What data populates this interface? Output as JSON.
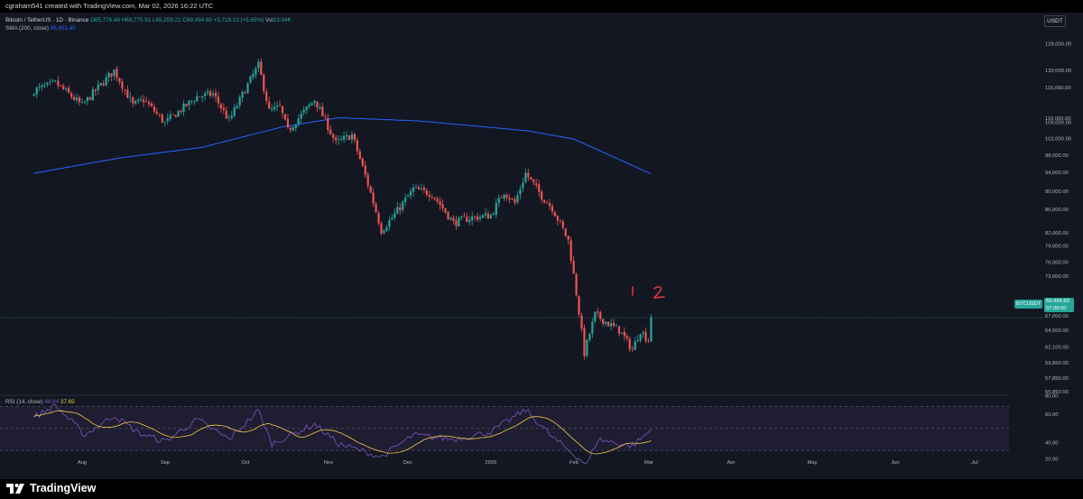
{
  "header": {
    "credit": "cgraham541 created with TradingView.com, Mar 02, 2026 16:22 UTC"
  },
  "legend": {
    "symbol": "Bitcoin / TetherUS · 1D · Binance",
    "open": "O65,776.48",
    "high": "H69,775.91",
    "low": "L65,259.21",
    "close": "C69,494.60",
    "change": "+3,718.13 (+5.65%)",
    "volume_label": "Vol",
    "volume": "23.04K",
    "sma_label": "SMA (200, close)",
    "sma_value": "96,851.45",
    "rsi_label": "RSI (14, close)",
    "rsi_value": "48.84",
    "rsi_ma_value": "37.65"
  },
  "currency": "USDT",
  "last_price": {
    "symbol": "BTCUSDT",
    "price": "69,494.60",
    "countdown": "07:38:00"
  },
  "footer": {
    "brand": "TradingView"
  },
  "annotations": [
    "1",
    "2"
  ],
  "colors": {
    "up": "#26a69a",
    "down": "#ef5350",
    "sma": "#2962ff",
    "rsi": "#7e57c2",
    "rsi_ma": "#f7c948",
    "annotation": "#f23645",
    "background": "#131722"
  },
  "chart_data": {
    "type": "candlestick",
    "xlabels": [
      "Aug",
      "Sep",
      "Oct",
      "Nov",
      "Dec",
      "2026",
      "Feb",
      "Mar",
      "Apr",
      "May",
      "Jun",
      "Jul"
    ],
    "price_ticks": [
      "128,000.00",
      "120,000.00",
      "115,000.00",
      "110,000.00",
      "106,000.00",
      "102,000.00",
      "98,000.00",
      "94,000.00",
      "90,000.00",
      "86,000.00",
      "82,000.00",
      "79,000.00",
      "76,000.00",
      "73,000.00",
      "67,000.00",
      "64,500.00",
      "62,100.00",
      "59,850.00",
      "57,850.00",
      "55,850.00"
    ],
    "rsi_ticks": [
      "80.00",
      "60.00",
      "40.00",
      "20.00"
    ],
    "price_keyframes": [
      [
        "2025-07-14",
        117500
      ],
      [
        "2025-07-22",
        119500
      ],
      [
        "2025-08-01",
        113500
      ],
      [
        "2025-08-13",
        123000
      ],
      [
        "2025-08-20",
        113500
      ],
      [
        "2025-08-24",
        115000
      ],
      [
        "2025-09-01",
        109000
      ],
      [
        "2025-09-13",
        115800
      ],
      [
        "2025-09-19",
        116500
      ],
      [
        "2025-09-25",
        109500
      ],
      [
        "2025-10-06",
        124500
      ],
      [
        "2025-10-10",
        112000
      ],
      [
        "2025-10-14",
        113000
      ],
      [
        "2025-10-17",
        107000
      ],
      [
        "2025-10-27",
        115000
      ],
      [
        "2025-11-04",
        104000
      ],
      [
        "2025-11-10",
        106000
      ],
      [
        "2025-11-21",
        85000
      ],
      [
        "2025-11-25",
        87500
      ],
      [
        "2025-12-03",
        93500
      ],
      [
        "2025-12-10",
        92500
      ],
      [
        "2025-12-18",
        86500
      ],
      [
        "2025-12-24",
        87500
      ],
      [
        "2026-01-01",
        88000
      ],
      [
        "2026-01-06",
        93000
      ],
      [
        "2026-01-10",
        90500
      ],
      [
        "2026-01-14",
        97000
      ],
      [
        "2026-01-20",
        92000
      ],
      [
        "2026-01-24",
        89500
      ],
      [
        "2026-01-30",
        83000
      ],
      [
        "2026-02-05",
        64000
      ],
      [
        "2026-02-09",
        70000
      ],
      [
        "2026-02-14",
        68500
      ],
      [
        "2026-02-18",
        67500
      ],
      [
        "2026-02-23",
        64500
      ],
      [
        "2026-02-26",
        67500
      ],
      [
        "2026-03-01",
        65800
      ],
      [
        "2026-03-02",
        69494.6
      ]
    ],
    "sma_keyframes": [
      [
        "2025-07-14",
        97000
      ],
      [
        "2025-08-15",
        100500
      ],
      [
        "2025-09-15",
        103000
      ],
      [
        "2025-10-15",
        108000
      ],
      [
        "2025-11-05",
        110300
      ],
      [
        "2025-12-05",
        109500
      ],
      [
        "2026-01-15",
        107000
      ],
      [
        "2026-02-01",
        105000
      ],
      [
        "2026-02-15",
        101000
      ],
      [
        "2026-03-02",
        96851.45
      ]
    ],
    "rsi_keyframes": [
      [
        "2025-07-14",
        60
      ],
      [
        "2025-07-22",
        71
      ],
      [
        "2025-08-02",
        44
      ],
      [
        "2025-08-13",
        62
      ],
      [
        "2025-08-22",
        46
      ],
      [
        "2025-09-01",
        38
      ],
      [
        "2025-09-13",
        58
      ],
      [
        "2025-09-25",
        40
      ],
      [
        "2025-10-06",
        66
      ],
      [
        "2025-10-11",
        36
      ],
      [
        "2025-10-27",
        54
      ],
      [
        "2025-11-05",
        36
      ],
      [
        "2025-11-21",
        24
      ],
      [
        "2025-12-03",
        44
      ],
      [
        "2025-12-18",
        40
      ],
      [
        "2026-01-01",
        47
      ],
      [
        "2026-01-14",
        67
      ],
      [
        "2026-01-24",
        42
      ],
      [
        "2026-02-06",
        17
      ],
      [
        "2026-02-10",
        40
      ],
      [
        "2026-02-23",
        34
      ],
      [
        "2026-03-02",
        48.84
      ]
    ],
    "rsi_levels": [
      70,
      50,
      30
    ],
    "grid": false,
    "scale": "log"
  }
}
